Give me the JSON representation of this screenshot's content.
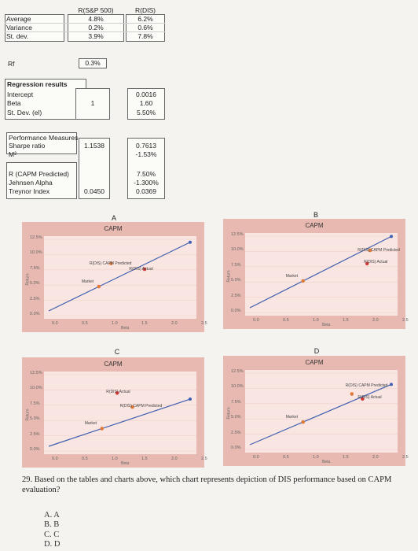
{
  "table": {
    "col_sp500": "R(S&P 500)",
    "col_dis": "R(DIS)",
    "rows": [
      {
        "label": "Average",
        "sp500": "4.8%",
        "dis": "6.2%"
      },
      {
        "label": "Variance",
        "sp500": "0.2%",
        "dis": "0.6%"
      },
      {
        "label": "St. dev.",
        "sp500": "3.9%",
        "dis": "7.8%"
      }
    ],
    "rf_label": "Rf",
    "rf_value": "0.3%"
  },
  "regression": {
    "title": "Regression results",
    "rows": [
      {
        "label": "Intercept",
        "sp500": "",
        "dis": "0.0016"
      },
      {
        "label": "Beta",
        "sp500": "1",
        "dis": "1.60"
      },
      {
        "label": "St. Dev. (el)",
        "sp500": "",
        "dis": "5.50%"
      }
    ]
  },
  "performance": {
    "title": "Performance Measures",
    "rows": [
      {
        "label": "Sharpe ratio",
        "sp500": "1.1538",
        "dis": "0.7613"
      },
      {
        "label": "M²",
        "sp500": "",
        "dis": "-1.53%"
      },
      {
        "label": "R (CAPM Predicted)",
        "sp500": "",
        "dis": "7.50%"
      },
      {
        "label": "Jehnsen Alpha",
        "sp500": "",
        "dis": "-1.300%"
      },
      {
        "label": "Treynor Index",
        "sp500": "0.0450",
        "dis": "0.0369"
      }
    ]
  },
  "charts": [
    {
      "letter": "A",
      "title": "CAPM",
      "ylabel": "Return",
      "xlabel": "Beta",
      "yticks": [
        "12.5%",
        "10.0%",
        "7.5%",
        "5.0%",
        "2.5%",
        "0.0%"
      ],
      "xticks": [
        "0.0",
        "0.5",
        "1.0",
        "1.5",
        "2.0",
        "2.5"
      ],
      "labels": {
        "market": "Market",
        "capm": "R(DIS) CAPM Predicted",
        "actual": "R(DIS) Actual"
      }
    },
    {
      "letter": "B",
      "title": "CAPM",
      "ylabel": "Return",
      "xlabel": "Beta",
      "yticks": [
        "12.5%",
        "10.0%",
        "7.5%",
        "5.0%",
        "2.5%",
        "0.0%"
      ],
      "xticks": [
        "0.0",
        "0.5",
        "1.0",
        "1.5",
        "2.0",
        "2.5"
      ],
      "labels": {
        "market": "Market",
        "capm": "R(DIS) CAPM Predicted",
        "actual": "R(DIS) Actual"
      }
    },
    {
      "letter": "C",
      "title": "CAPM",
      "ylabel": "Return",
      "xlabel": "Beta",
      "yticks": [
        "12.5%",
        "10.0%",
        "7.5%",
        "5.0%",
        "2.5%",
        "0.0%"
      ],
      "xticks": [
        "0.0",
        "0.5",
        "1.0",
        "1.5",
        "2.0",
        "2.5"
      ],
      "labels": {
        "market": "Market",
        "capm": "R(DIS) CAPM Predicted",
        "actual": "R(DIS) Actual"
      }
    },
    {
      "letter": "D",
      "title": "CAPM",
      "ylabel": "Return",
      "xlabel": "Beta",
      "yticks": [
        "12.5%",
        "10.0%",
        "7.5%",
        "5.0%",
        "2.5%",
        "0.0%"
      ],
      "xticks": [
        "0.0",
        "0.5",
        "1.0",
        "1.5",
        "2.0",
        "2.5"
      ],
      "labels": {
        "market": "Market",
        "capm": "R(DIS) CAPM Predicted",
        "actual": "R(DIS) Actual"
      }
    }
  ],
  "question": {
    "text": "29. Based on the tables and charts above, which chart represents depiction of DIS performance based on CAPM evaluation?",
    "options": [
      "A. A",
      "B. B",
      "C. C",
      "D. D"
    ]
  }
}
